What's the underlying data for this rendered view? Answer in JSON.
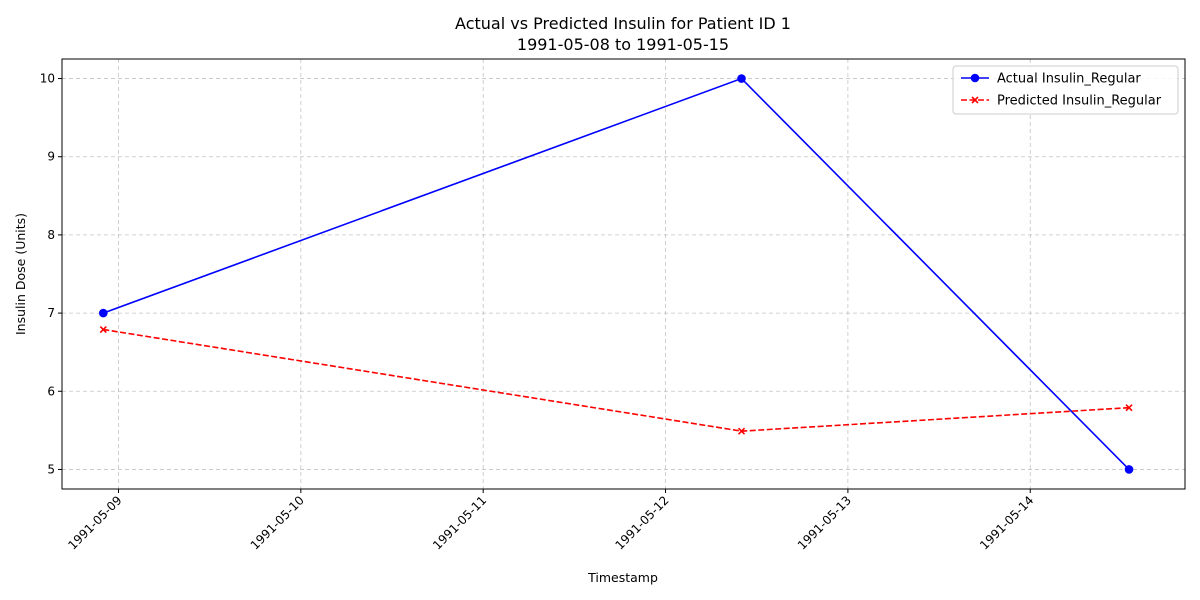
{
  "chart_data": {
    "type": "line",
    "title": "Actual vs Predicted Insulin for Patient ID 1",
    "subtitle": "1991-05-08 to 1991-05-15",
    "xlabel": "Timestamp",
    "ylabel": "Insulin Dose (Units)",
    "x_ticks": [
      "1991-05-09",
      "1991-05-10",
      "1991-05-11",
      "1991-05-12",
      "1991-05-13",
      "1991-05-14"
    ],
    "y_ticks": [
      5,
      6,
      7,
      8,
      9,
      10
    ],
    "xlim": [
      "1991-05-08 16:34",
      "1991-05-14 20:22"
    ],
    "ylim": [
      4.75,
      10.25
    ],
    "grid": true,
    "legend_position": "top-right",
    "series": [
      {
        "name": "Actual Insulin_Regular",
        "color": "#0000ff",
        "line_style": "solid",
        "marker": "circle",
        "points": [
          {
            "x": "1991-05-08 22:00",
            "y": 7
          },
          {
            "x": "1991-05-12 10:00",
            "y": 10
          },
          {
            "x": "1991-05-14 13:00",
            "y": 5
          }
        ]
      },
      {
        "name": "Predicted Insulin_Regular",
        "color": "#ff0000",
        "line_style": "dashed",
        "marker": "x",
        "points": [
          {
            "x": "1991-05-08 22:00",
            "y": 6.79
          },
          {
            "x": "1991-05-12 10:00",
            "y": 5.49
          },
          {
            "x": "1991-05-14 13:00",
            "y": 5.79
          }
        ]
      }
    ]
  }
}
